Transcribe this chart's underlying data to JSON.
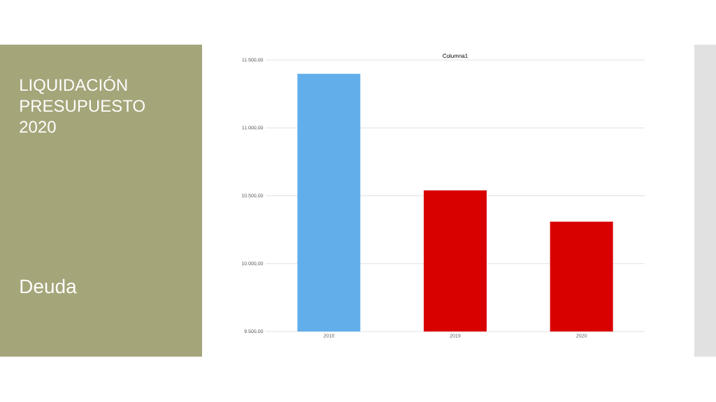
{
  "chart_data": {
    "type": "bar",
    "title": "Columna1",
    "subtitle": "LIQUIDACIÓN PRESUPUESTO 2020",
    "annotations": [
      "Deuda"
    ],
    "categories": [
      "2018",
      "2019",
      "2020"
    ],
    "values": [
      11400,
      10540,
      10310
    ],
    "colors": [
      "#62aeea",
      "#d90000",
      "#d90000"
    ],
    "ylim": [
      9500,
      11500
    ],
    "yticks": [
      {
        "value": 9500,
        "label": "9.500,00"
      },
      {
        "value": 10000,
        "label": "10.000,00"
      },
      {
        "value": 10500,
        "label": "10.500,00"
      },
      {
        "value": 11000,
        "label": "11.000,00"
      },
      {
        "value": 11500,
        "label": "11.500,00"
      }
    ],
    "grid": "y"
  }
}
